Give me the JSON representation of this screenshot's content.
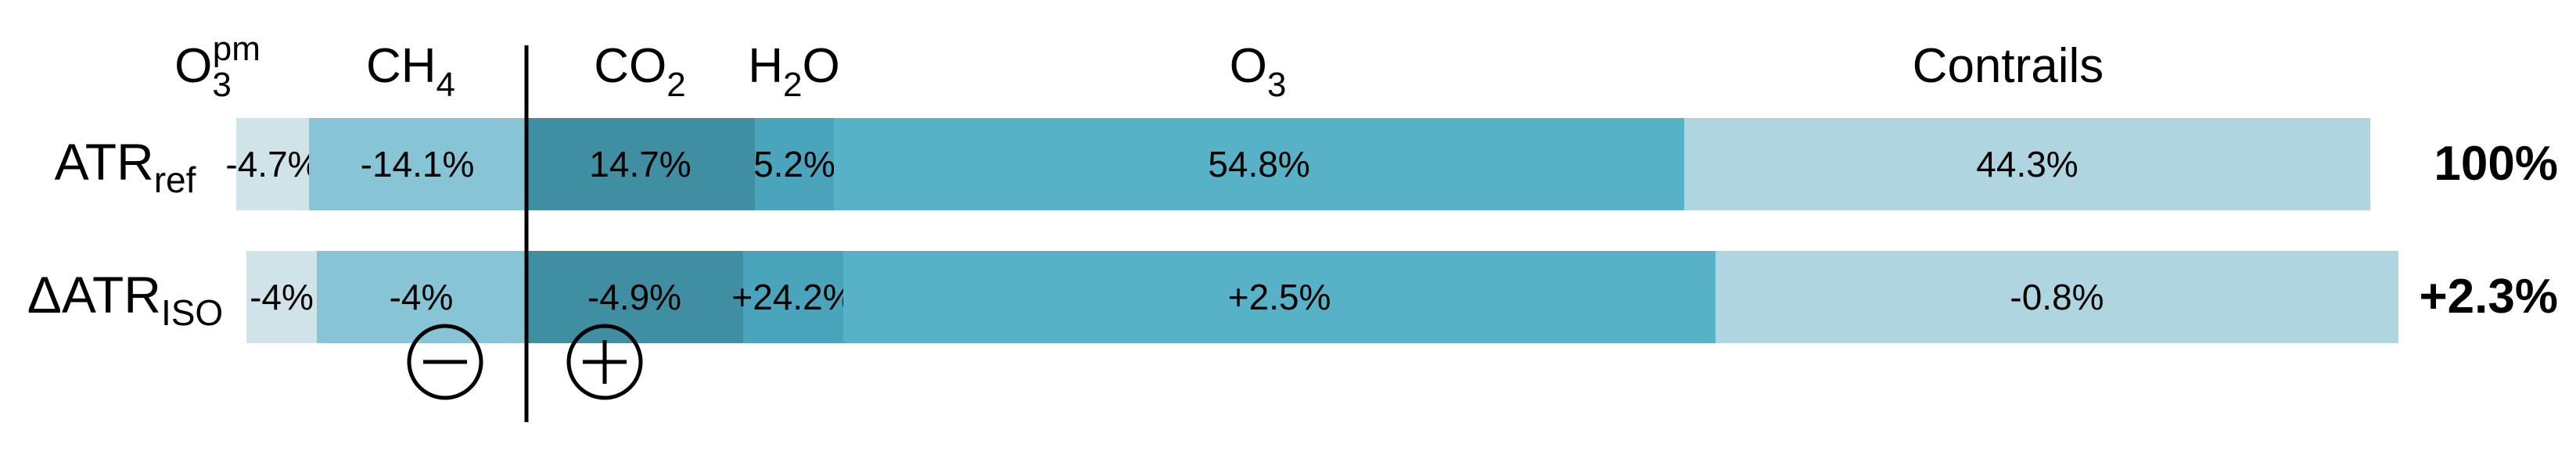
{
  "chart_data": {
    "type": "bar",
    "orientation": "horizontal-stacked",
    "headers": [
      {
        "main": "O",
        "sub": "3",
        "sup": "pm"
      },
      {
        "main": "CH",
        "sub": "4"
      },
      {
        "main": "CO",
        "sub": "2"
      },
      {
        "main": "H",
        "sub": "2",
        "tail": "O"
      },
      {
        "main": "O",
        "sub": "3"
      },
      {
        "main": "Contrails"
      }
    ],
    "rows": [
      {
        "label_main": "ATR",
        "label_sub": "ref",
        "total": "100%",
        "segments": [
          {
            "value": 4.7,
            "label": "-4.7%"
          },
          {
            "value": 14.1,
            "label": "-14.1%"
          },
          {
            "value": 14.7,
            "label": "14.7%"
          },
          {
            "value": 5.2,
            "label": "5.2%"
          },
          {
            "value": 54.8,
            "label": "54.8%"
          },
          {
            "value": 44.3,
            "label": "44.3%"
          }
        ]
      },
      {
        "label_main": "ΔATR",
        "label_sub": "ISO",
        "total": "+2.3%",
        "segments": [
          {
            "value": -4,
            "label": "-4%"
          },
          {
            "value": -4,
            "label": "-4%"
          },
          {
            "value": -4.9,
            "label": "-4.9%"
          },
          {
            "value": 24.2,
            "label": "+24.2%"
          },
          {
            "value": 2.5,
            "label": "+2.5%"
          },
          {
            "value": -0.8,
            "label": "-0.8%"
          }
        ]
      }
    ],
    "colors": [
      "#cfe3e9",
      "#86c4d6",
      "#3f8ea1",
      "#4aa5bc",
      "#57b2c8",
      "#afd5e0"
    ],
    "negative_symbol": "−",
    "positive_symbol": "+"
  }
}
